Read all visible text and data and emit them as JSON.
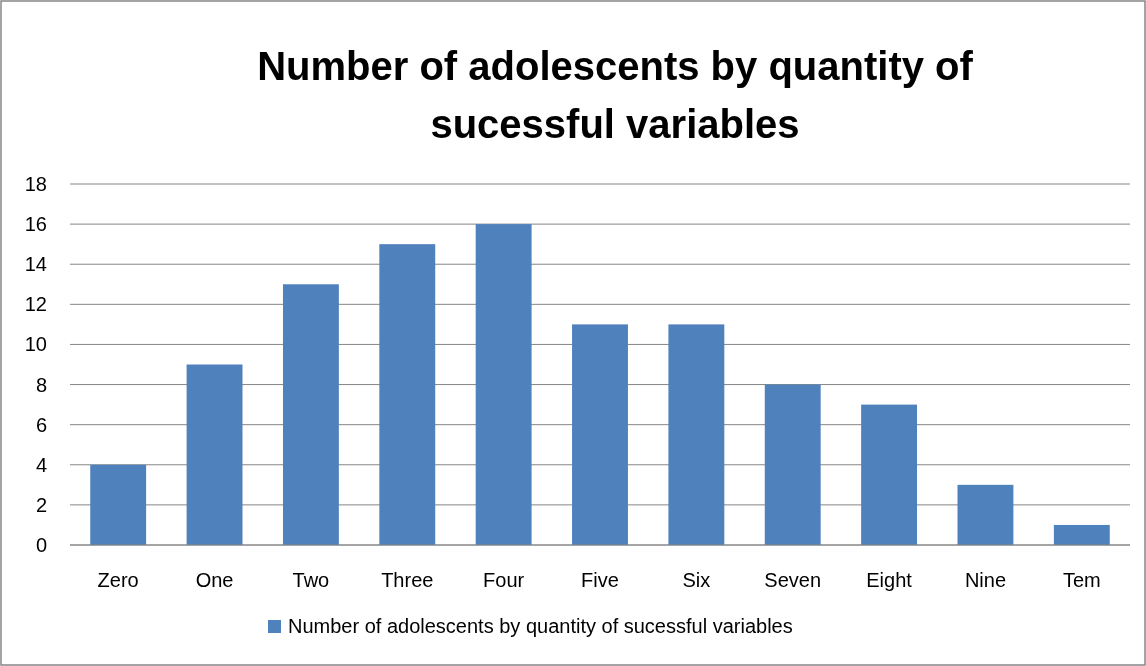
{
  "chart_data": {
    "type": "bar",
    "title": "Number of adolescents by quantity of sucessful variables",
    "categories": [
      "Zero",
      "One",
      "Two",
      "Three",
      "Four",
      "Five",
      "Six",
      "Seven",
      "Eight",
      "Nine",
      "Tem"
    ],
    "series": [
      {
        "name": "Number of adolescents by quantity of sucessful variables",
        "color": "#4f81bd",
        "values": [
          4,
          9,
          13,
          15,
          16,
          11,
          11,
          8,
          7,
          3,
          1
        ]
      }
    ],
    "ylim": [
      0,
      18
    ],
    "yticks": [
      0,
      2,
      4,
      6,
      8,
      10,
      12,
      14,
      16,
      18
    ],
    "grid": "y",
    "legend": "bottom"
  }
}
